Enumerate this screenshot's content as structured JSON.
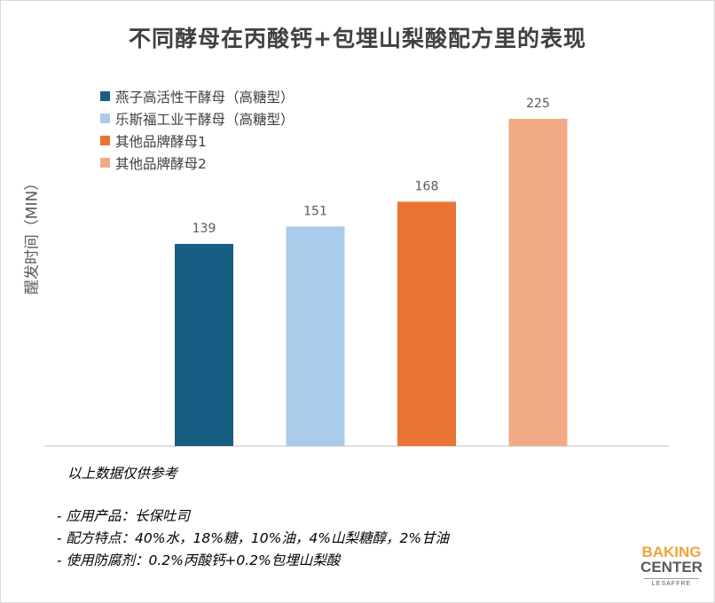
{
  "chart_data": {
    "type": "bar",
    "title": "不同酵母在丙酸钙+包埋山梨酸配方里的表现",
    "ylabel": "醒发时间（MIN）",
    "xlabel": "",
    "ylim": [
      0,
      250
    ],
    "grid": false,
    "legend_position": "top-left",
    "series": [
      {
        "name": "燕子高活性干酵母（高糖型）",
        "value": 139,
        "color": "#175f82"
      },
      {
        "name": "乐斯福工业干酵母（高糖型）",
        "value": 151,
        "color": "#a9ccec"
      },
      {
        "name": "其他品牌酵母1",
        "value": 168,
        "color": "#e97434"
      },
      {
        "name": "其他品牌酵母2",
        "value": 225,
        "color": "#f2aa85"
      }
    ]
  },
  "notes": {
    "disclaimer": "以上数据仅供参考",
    "lines": [
      "- 应用产品：长保吐司",
      "- 配方特点：40%水，18%糖，10%油，4%山梨糖醇，2%甘油",
      "- 使用防腐剂：0.2%丙酸钙+0.2%包埋山梨酸"
    ]
  },
  "logo": {
    "line1": "BAKING",
    "line2": "CENTER",
    "line3": "LESAFFRE"
  }
}
